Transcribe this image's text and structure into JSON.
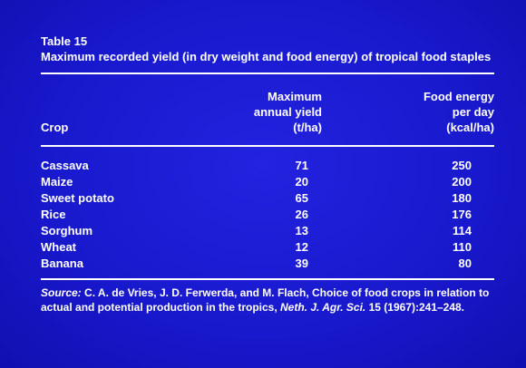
{
  "table": {
    "number": "Table 15",
    "title": "Maximum recorded yield (in dry weight and food energy) of tropical food staples",
    "headers": {
      "crop": "Crop",
      "yield_line1": "Maximum",
      "yield_line2": "annual yield",
      "yield_line3": "(t/ha)",
      "energy_line1": "Food energy",
      "energy_line2": "per day",
      "energy_line3": "(kcal/ha)"
    },
    "rows": [
      {
        "crop": "Cassava",
        "yield": "71",
        "energy": "250"
      },
      {
        "crop": "Maize",
        "yield": "20",
        "energy": "200"
      },
      {
        "crop": "Sweet potato",
        "yield": "65",
        "energy": "180"
      },
      {
        "crop": "Rice",
        "yield": "26",
        "energy": "176"
      },
      {
        "crop": "Sorghum",
        "yield": "13",
        "energy": "114"
      },
      {
        "crop": "Wheat",
        "yield": "12",
        "energy": "110"
      },
      {
        "crop": "Banana",
        "yield": "39",
        "energy": "80"
      }
    ],
    "source": {
      "label": "Source:",
      "text_1": " C. A. de Vries, J. D. Ferwerda, and M. Flach, Choice of food crops in relation to actual and potential production in the tropics, ",
      "journal": "Neth. J. Agr. Sci.",
      "text_2": " 15 (1967):241–248."
    }
  },
  "colors": {
    "background": "#1a1ad0",
    "text": "#ffffff"
  }
}
